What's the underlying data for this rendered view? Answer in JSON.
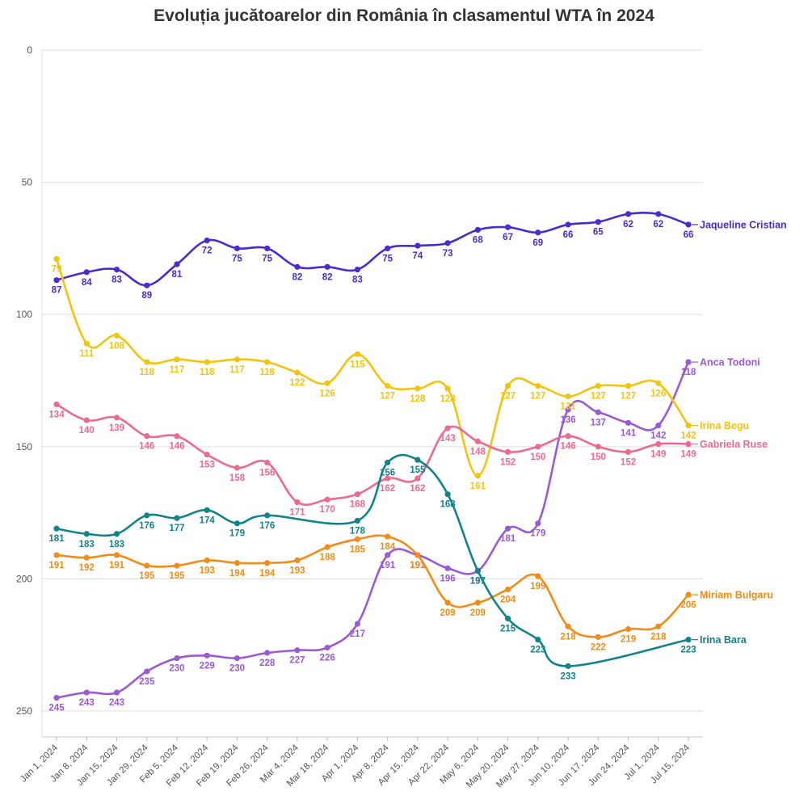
{
  "chart_data": {
    "type": "line",
    "title": "Evoluția jucătoarelor din România în clasamentul WTA în 2024",
    "xlabel": "",
    "ylabel": "",
    "ylim": [
      0,
      260
    ],
    "y_reversed": true,
    "y_ticks": [
      "0",
      "50",
      "100",
      "150",
      "200",
      "250"
    ],
    "grid": true,
    "categories": [
      "Jan 1, 2024",
      "Jan 8, 2024",
      "Jan 15, 2024",
      "Jan 29, 2024",
      "Feb 5, 2024",
      "Feb 12, 2024",
      "Feb 19, 2024",
      "Feb 26, 2024",
      "Mar 4, 2024",
      "Mar 18, 2024",
      "Apr 1, 2024",
      "Apr 8, 2024",
      "Apr 15, 2024",
      "Apr 22, 2024",
      "May 6, 2024",
      "May 20, 2024",
      "May 27, 2024",
      "Jun 10, 2024",
      "Jun 17, 2024",
      "Jun 24, 2024",
      "Jul 1, 2024",
      "Jul 15, 2024"
    ],
    "series": [
      {
        "name": "Jaqueline Cristian",
        "color": "#4a2bd1",
        "values": [
          87,
          84,
          83,
          89,
          81,
          72,
          75,
          75,
          82,
          82,
          83,
          75,
          74,
          73,
          68,
          67,
          69,
          66,
          65,
          62,
          62,
          66
        ]
      },
      {
        "name": "Anca Todoni",
        "color": "#9b59d6",
        "values": [
          245,
          243,
          243,
          235,
          230,
          229,
          230,
          228,
          227,
          226,
          217,
          191,
          191,
          196,
          197,
          181,
          179,
          136,
          137,
          141,
          142,
          118
        ]
      },
      {
        "name": "Irina Begu",
        "color": "#f2c410",
        "values": [
          79,
          111,
          108,
          118,
          117,
          118,
          117,
          118,
          122,
          126,
          115,
          127,
          128,
          128,
          161,
          127,
          127,
          131,
          127,
          127,
          126,
          142
        ]
      },
      {
        "name": "Gabriela Ruse",
        "color": "#ec6a8c",
        "values": [
          134,
          140,
          139,
          146,
          146,
          153,
          158,
          156,
          171,
          170,
          168,
          162,
          162,
          143,
          148,
          152,
          150,
          146,
          150,
          152,
          149,
          149
        ]
      },
      {
        "name": "Miriam Bulgaru",
        "color": "#f08c17",
        "values": [
          191,
          192,
          191,
          195,
          195,
          193,
          194,
          194,
          193,
          188,
          185,
          184,
          191,
          209,
          209,
          204,
          199,
          218,
          222,
          219,
          218,
          206
        ]
      },
      {
        "name": "Irina Bara",
        "color": "#12838b",
        "values": [
          181,
          183,
          183,
          176,
          177,
          174,
          179,
          176,
          null,
          null,
          178,
          156,
          155,
          168,
          197,
          215,
          223,
          233,
          null,
          null,
          null,
          223
        ]
      }
    ]
  }
}
